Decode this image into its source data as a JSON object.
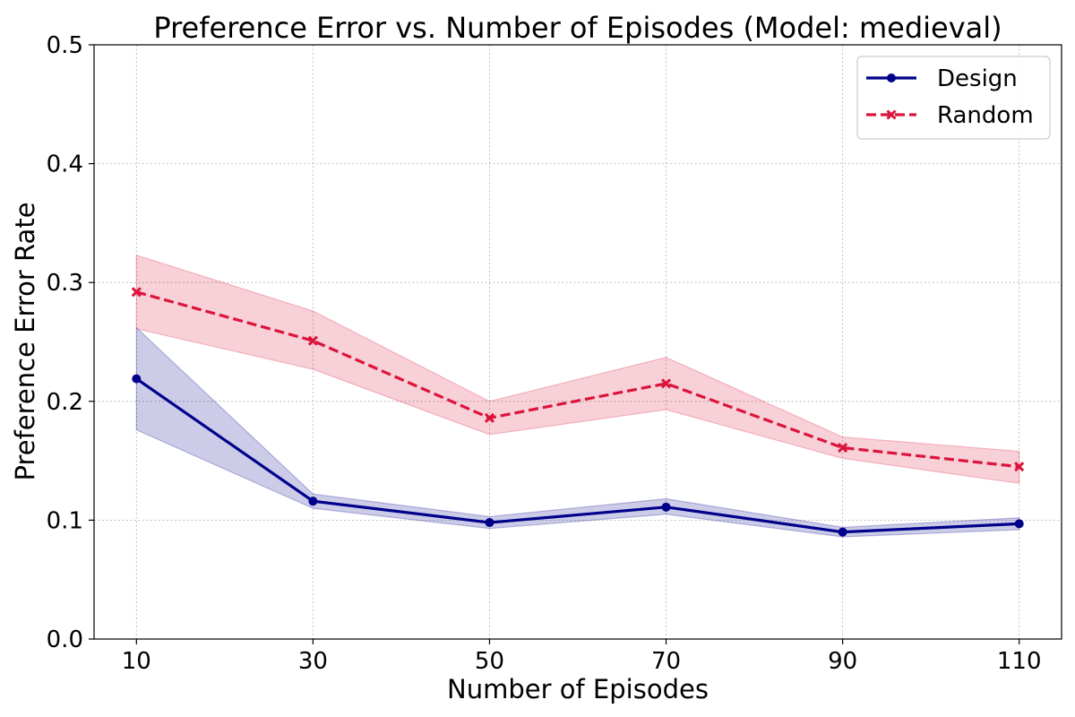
{
  "chart_data": {
    "type": "line",
    "title": "Preference Error vs. Number of Episodes (Model: medieval)",
    "xlabel": "Number of Episodes",
    "ylabel": "Preference Error Rate",
    "x": [
      10,
      30,
      50,
      70,
      90,
      110
    ],
    "x_tick_labels": [
      "10",
      "30",
      "50",
      "70",
      "90",
      "110"
    ],
    "xlim": [
      5.2,
      114.8
    ],
    "ylim": [
      0.0,
      0.5
    ],
    "y_ticks": [
      0.0,
      0.1,
      0.2,
      0.3,
      0.4,
      0.5
    ],
    "y_tick_labels": [
      "0.0",
      "0.1",
      "0.2",
      "0.3",
      "0.4",
      "0.5"
    ],
    "grid": true,
    "legend_position": "top-right",
    "series": [
      {
        "name": "Design",
        "color": "#00008b",
        "line_style": "solid",
        "marker": "circle",
        "values": [
          0.219,
          0.116,
          0.098,
          0.111,
          0.09,
          0.097
        ],
        "lower": [
          0.176,
          0.11,
          0.093,
          0.105,
          0.086,
          0.092
        ],
        "upper": [
          0.262,
          0.122,
          0.103,
          0.118,
          0.094,
          0.102
        ]
      },
      {
        "name": "Random",
        "color": "#dc143c",
        "line_style": "dashed",
        "marker": "x",
        "values": [
          0.292,
          0.251,
          0.186,
          0.215,
          0.161,
          0.145
        ],
        "lower": [
          0.261,
          0.227,
          0.172,
          0.193,
          0.152,
          0.131
        ],
        "upper": [
          0.323,
          0.276,
          0.2,
          0.237,
          0.17,
          0.158
        ]
      }
    ]
  }
}
